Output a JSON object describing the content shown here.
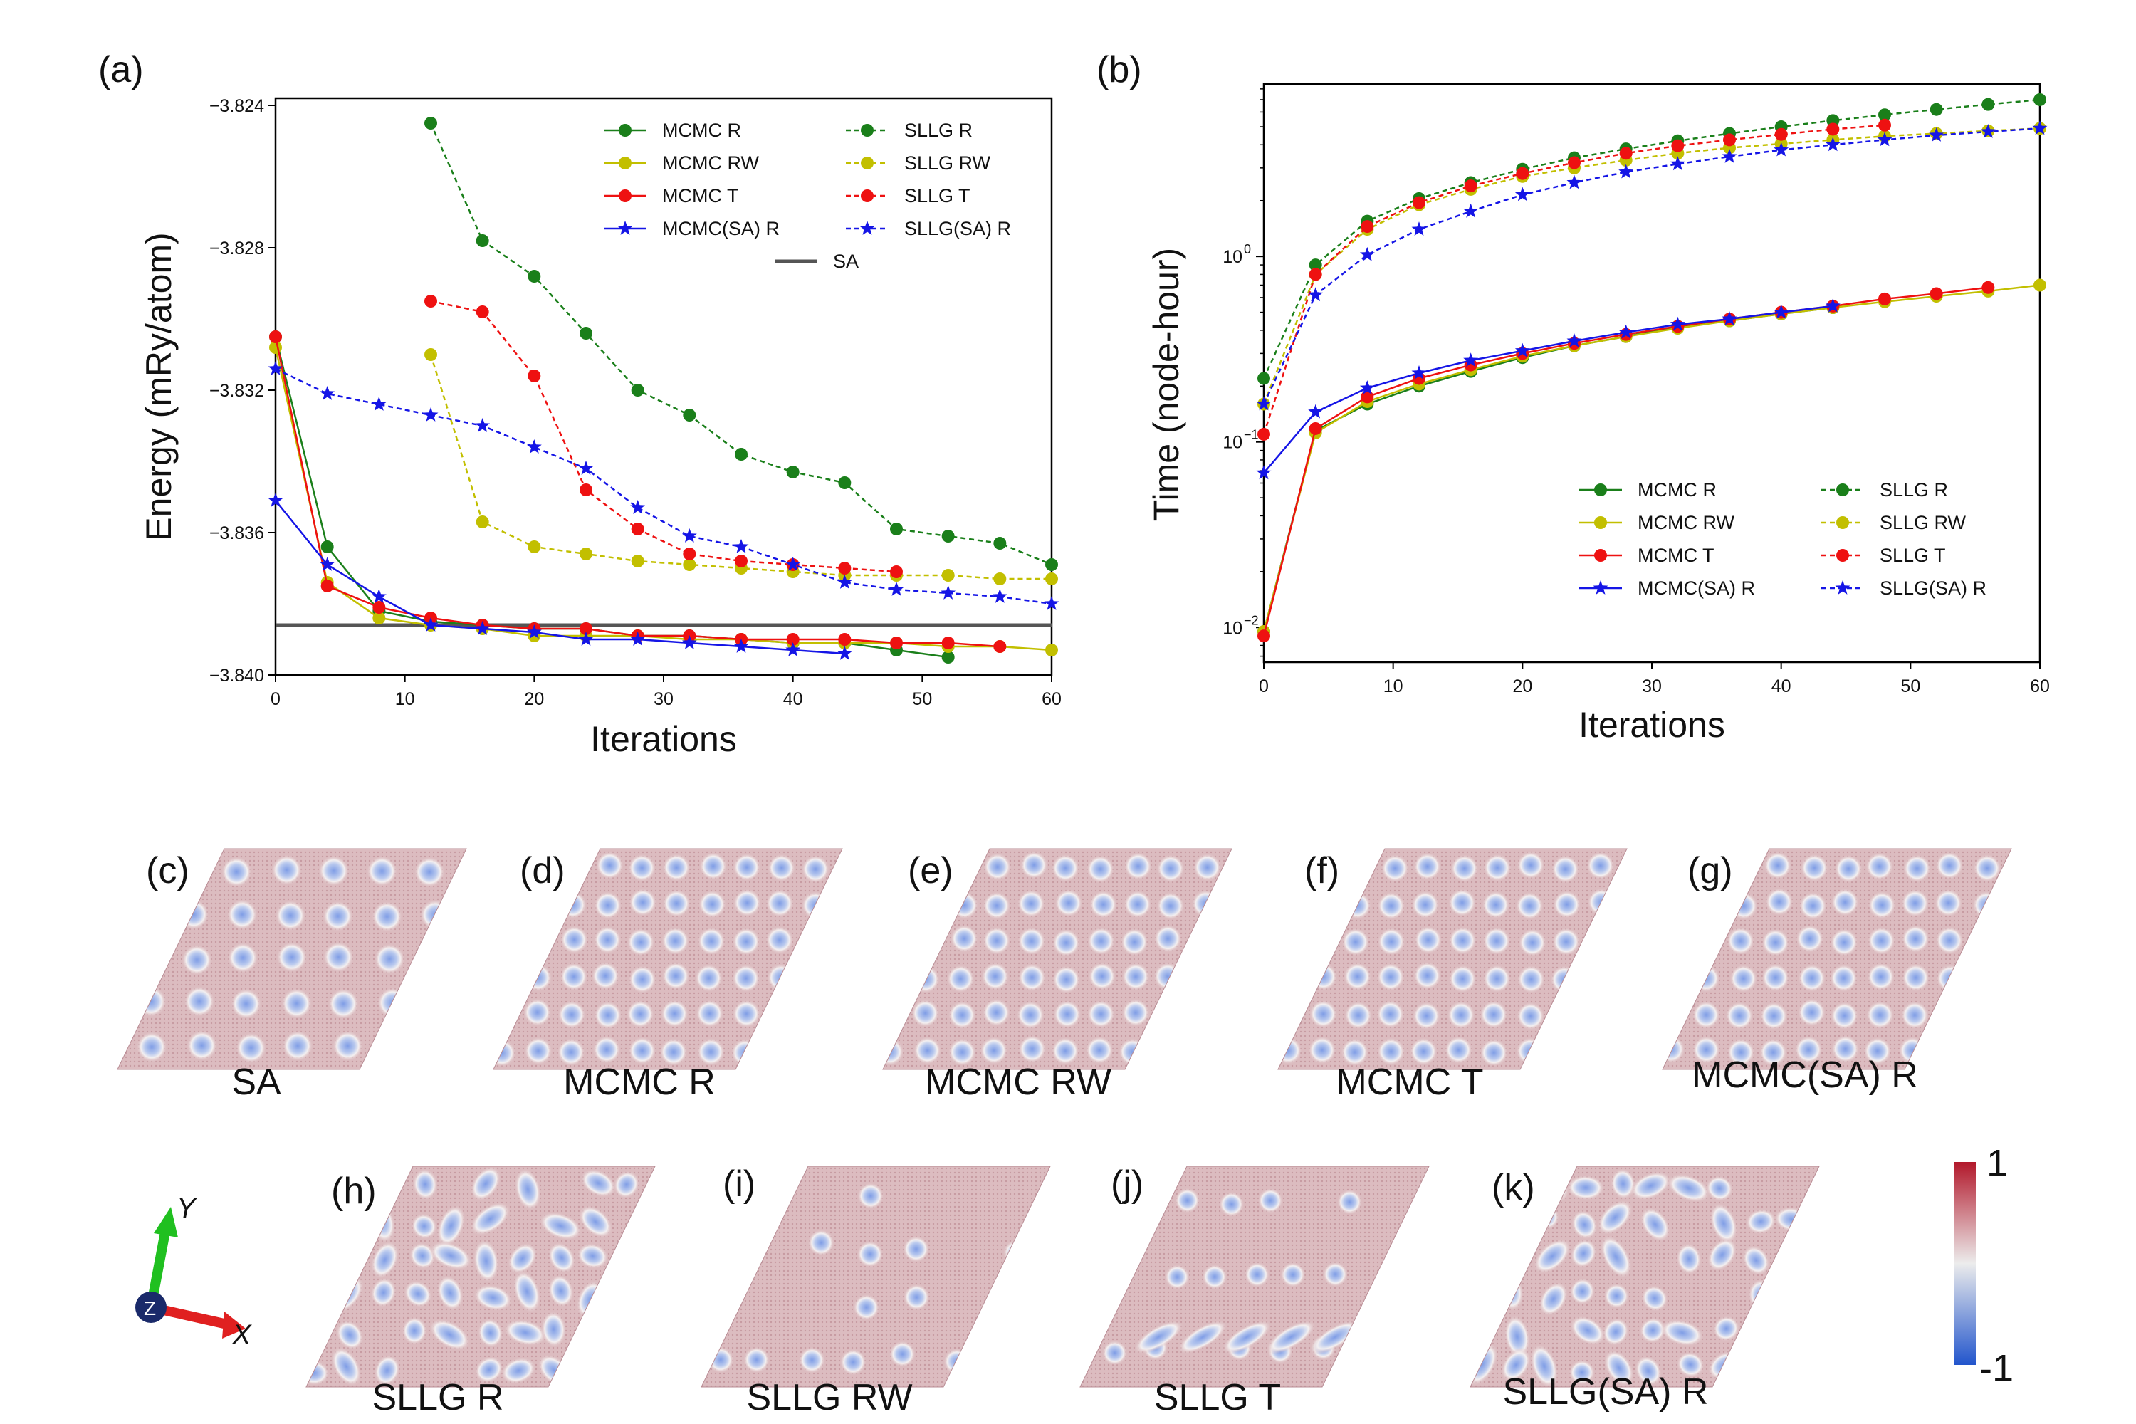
{
  "colors": {
    "green": "#1a7f1a",
    "yellow": "#c2bf00",
    "red": "#ee1111",
    "blue": "#1515e6",
    "sa_line": "#555555",
    "cb_top": "#b2182b",
    "cb_mid": "#ececec",
    "cb_bottom": "#2255cc",
    "axis_x": "#e02020",
    "axis_y": "#20c020",
    "axis_z": "#1a2a6a"
  },
  "chart_data": [
    {
      "type": "line",
      "panel_label": "(a)",
      "xlabel": "Iterations",
      "ylabel": "Energy (mRy/atom)",
      "xlim": [
        0,
        60
      ],
      "ylim": [
        -3.84,
        -3.824
      ],
      "x_ticks": [
        "0",
        "10",
        "20",
        "30",
        "40",
        "50",
        "60"
      ],
      "y_ticks": [
        "−3.824",
        "−3.828",
        "−3.832",
        "−3.836",
        "−3.840"
      ],
      "reference_line": {
        "name": "SA",
        "value": -3.8386
      },
      "series": [
        {
          "name": "MCMC R",
          "style": "solid",
          "marker": "circle",
          "color": "green",
          "x": [
            0,
            4,
            8,
            12,
            16,
            20,
            24,
            28,
            32,
            36,
            40,
            44,
            48,
            52
          ],
          "y": [
            -3.8305,
            -3.8364,
            -3.8382,
            -3.8385,
            -3.8386,
            -3.8387,
            -3.8387,
            -3.8389,
            -3.8389,
            -3.839,
            -3.8391,
            -3.8391,
            -3.8393,
            -3.8395
          ]
        },
        {
          "name": "MCMC RW",
          "style": "solid",
          "marker": "circle",
          "color": "yellow",
          "x": [
            0,
            4,
            8,
            12,
            16,
            20,
            24,
            28,
            32,
            36,
            40,
            44,
            48,
            52,
            56,
            60
          ],
          "y": [
            -3.8308,
            -3.8374,
            -3.8384,
            -3.8386,
            -3.8387,
            -3.8389,
            -3.8389,
            -3.8389,
            -3.839,
            -3.839,
            -3.8391,
            -3.8391,
            -3.8391,
            -3.8392,
            -3.8392,
            -3.8393
          ]
        },
        {
          "name": "MCMC T",
          "style": "solid",
          "marker": "circle",
          "color": "red",
          "x": [
            0,
            4,
            8,
            12,
            16,
            20,
            24,
            28,
            32,
            36,
            40,
            44,
            48,
            52,
            56
          ],
          "y": [
            -3.8305,
            -3.8375,
            -3.8381,
            -3.8384,
            -3.8386,
            -3.8387,
            -3.8387,
            -3.8389,
            -3.8389,
            -3.839,
            -3.839,
            -3.839,
            -3.8391,
            -3.8391,
            -3.8392
          ]
        },
        {
          "name": "MCMC(SA) R",
          "style": "solid",
          "marker": "star",
          "color": "blue",
          "x": [
            0,
            4,
            8,
            12,
            16,
            20,
            24,
            28,
            32,
            36,
            40,
            44
          ],
          "y": [
            -3.8351,
            -3.8369,
            -3.8378,
            -3.8386,
            -3.8387,
            -3.8388,
            -3.839,
            -3.839,
            -3.8391,
            -3.8392,
            -3.8393,
            -3.8394
          ]
        },
        {
          "name": "SLLG R",
          "style": "dashed",
          "marker": "circle",
          "color": "green",
          "x": [
            12,
            16,
            20,
            24,
            28,
            32,
            36,
            40,
            44,
            48,
            52,
            56,
            60
          ],
          "y": [
            -3.8245,
            -3.8278,
            -3.8288,
            -3.8304,
            -3.832,
            -3.8327,
            -3.8338,
            -3.8343,
            -3.8346,
            -3.8359,
            -3.8361,
            -3.8363,
            -3.8369
          ]
        },
        {
          "name": "SLLG RW",
          "style": "dashed",
          "marker": "circle",
          "color": "yellow",
          "x": [
            12,
            16,
            20,
            24,
            28,
            32,
            36,
            40,
            44,
            48,
            52,
            56,
            60
          ],
          "y": [
            -3.831,
            -3.8357,
            -3.8364,
            -3.8366,
            -3.8368,
            -3.8369,
            -3.837,
            -3.8371,
            -3.8372,
            -3.8372,
            -3.8372,
            -3.8373,
            -3.8373
          ]
        },
        {
          "name": "SLLG T",
          "style": "dashed",
          "marker": "circle",
          "color": "red",
          "x": [
            12,
            16,
            20,
            24,
            28,
            32,
            36,
            40,
            44,
            48
          ],
          "y": [
            -3.8295,
            -3.8298,
            -3.8316,
            -3.8348,
            -3.8359,
            -3.8366,
            -3.8368,
            -3.8369,
            -3.837,
            -3.8371
          ]
        },
        {
          "name": "SLLG(SA) R",
          "style": "dashed",
          "marker": "star",
          "color": "blue",
          "x": [
            0,
            4,
            8,
            12,
            16,
            20,
            24,
            28,
            32,
            36,
            40,
            44,
            48,
            52,
            56,
            60
          ],
          "y": [
            -3.8314,
            -3.8321,
            -3.8324,
            -3.8327,
            -3.833,
            -3.8336,
            -3.8342,
            -3.8353,
            -3.8361,
            -3.8364,
            -3.8369,
            -3.8374,
            -3.8376,
            -3.8377,
            -3.8378,
            -3.838
          ]
        }
      ]
    },
    {
      "type": "line",
      "panel_label": "(b)",
      "xlabel": "Iterations",
      "ylabel": "Time (node-hour)",
      "yscale": "log",
      "xlim": [
        0,
        60
      ],
      "ylim": [
        0.0065,
        8.5
      ],
      "x_ticks": [
        "0",
        "10",
        "20",
        "30",
        "40",
        "50",
        "60"
      ],
      "y_ticks": [
        {
          "value": 1,
          "label": "10",
          "exp": "0"
        },
        {
          "value": 0.1,
          "label": "10",
          "exp": "−1"
        },
        {
          "value": 0.01,
          "label": "10",
          "exp": "−2"
        }
      ],
      "series": [
        {
          "name": "MCMC R",
          "style": "solid",
          "marker": "circle",
          "color": "green",
          "x": [
            0,
            4,
            8,
            12,
            16,
            20,
            24,
            28,
            32,
            36,
            40,
            44
          ],
          "y": [
            0.0095,
            0.115,
            0.16,
            0.2,
            0.24,
            0.285,
            0.33,
            0.37,
            0.42,
            0.45,
            0.49,
            0.53
          ]
        },
        {
          "name": "MCMC RW",
          "style": "solid",
          "marker": "circle",
          "color": "yellow",
          "x": [
            0,
            4,
            8,
            12,
            16,
            20,
            24,
            28,
            32,
            36,
            40,
            44,
            48,
            52,
            56,
            60
          ],
          "y": [
            0.0095,
            0.112,
            0.165,
            0.205,
            0.245,
            0.29,
            0.33,
            0.37,
            0.41,
            0.45,
            0.49,
            0.53,
            0.57,
            0.61,
            0.65,
            0.7
          ]
        },
        {
          "name": "MCMC T",
          "style": "solid",
          "marker": "circle",
          "color": "red",
          "x": [
            0,
            4,
            8,
            12,
            16,
            20,
            24,
            28,
            32,
            36,
            40,
            44,
            48,
            52,
            56
          ],
          "y": [
            0.009,
            0.118,
            0.175,
            0.22,
            0.26,
            0.3,
            0.34,
            0.38,
            0.42,
            0.46,
            0.5,
            0.54,
            0.59,
            0.63,
            0.68
          ]
        },
        {
          "name": "MCMC(SA) R",
          "style": "solid",
          "marker": "star",
          "color": "blue",
          "x": [
            0,
            4,
            8,
            12,
            16,
            20,
            24,
            28,
            32,
            36,
            40,
            44
          ],
          "y": [
            0.068,
            0.145,
            0.195,
            0.235,
            0.275,
            0.31,
            0.35,
            0.39,
            0.43,
            0.46,
            0.5,
            0.54
          ]
        },
        {
          "name": "SLLG R",
          "style": "dashed",
          "marker": "circle",
          "color": "green",
          "x": [
            0,
            4,
            8,
            12,
            16,
            20,
            24,
            28,
            32,
            36,
            40,
            44,
            48,
            52,
            56,
            60
          ],
          "y": [
            0.22,
            0.9,
            1.55,
            2.05,
            2.5,
            2.95,
            3.4,
            3.8,
            4.2,
            4.6,
            5.0,
            5.4,
            5.8,
            6.2,
            6.6,
            7.0
          ]
        },
        {
          "name": "SLLG RW",
          "style": "dashed",
          "marker": "circle",
          "color": "yellow",
          "x": [
            0,
            4,
            8,
            12,
            16,
            20,
            24,
            28,
            32,
            36,
            40,
            44,
            48,
            52,
            56,
            60
          ],
          "y": [
            0.16,
            0.8,
            1.4,
            1.9,
            2.3,
            2.7,
            3.0,
            3.3,
            3.6,
            3.85,
            4.05,
            4.25,
            4.45,
            4.6,
            4.75,
            4.9
          ]
        },
        {
          "name": "SLLG T",
          "style": "dashed",
          "marker": "circle",
          "color": "red",
          "x": [
            0,
            4,
            8,
            12,
            16,
            20,
            24,
            28,
            32,
            36,
            40,
            44,
            48
          ],
          "y": [
            0.11,
            0.8,
            1.45,
            1.95,
            2.4,
            2.8,
            3.2,
            3.6,
            3.95,
            4.25,
            4.55,
            4.85,
            5.1
          ]
        },
        {
          "name": "SLLG(SA) R",
          "style": "dashed",
          "marker": "star",
          "color": "blue",
          "x": [
            0,
            4,
            8,
            12,
            16,
            20,
            24,
            28,
            32,
            36,
            40,
            44,
            48,
            52,
            56,
            60
          ],
          "y": [
            0.16,
            0.62,
            1.02,
            1.4,
            1.75,
            2.15,
            2.5,
            2.85,
            3.15,
            3.45,
            3.75,
            4.0,
            4.25,
            4.5,
            4.7,
            4.9
          ]
        }
      ]
    }
  ],
  "snapshots": [
    {
      "id": "c",
      "panel_label": "(c)",
      "caption": "SA",
      "pattern": "sparse-round"
    },
    {
      "id": "d",
      "panel_label": "(d)",
      "caption": "MCMC R",
      "pattern": "dense-round"
    },
    {
      "id": "e",
      "panel_label": "(e)",
      "caption": "MCMC RW",
      "pattern": "dense-round"
    },
    {
      "id": "f",
      "panel_label": "(f)",
      "caption": "MCMC T",
      "pattern": "dense-round"
    },
    {
      "id": "g",
      "panel_label": "(g)",
      "caption": "MCMC(SA) R",
      "pattern": "dense-round"
    },
    {
      "id": "h",
      "panel_label": "(h)",
      "caption": "SLLG R",
      "pattern": "irregular-elongated"
    },
    {
      "id": "i",
      "panel_label": "(i)",
      "caption": "SLLG RW",
      "pattern": "very-sparse"
    },
    {
      "id": "j",
      "panel_label": "(j)",
      "caption": "SLLG T",
      "pattern": "sparse-with-stripes"
    },
    {
      "id": "k",
      "panel_label": "(k)",
      "caption": "SLLG(SA) R",
      "pattern": "irregular-elongated"
    }
  ],
  "colorbar": {
    "max_label": "1",
    "min_label": "-1"
  },
  "axes_triad": {
    "x_label": "X",
    "y_label": "Y",
    "z_label": "Z"
  }
}
